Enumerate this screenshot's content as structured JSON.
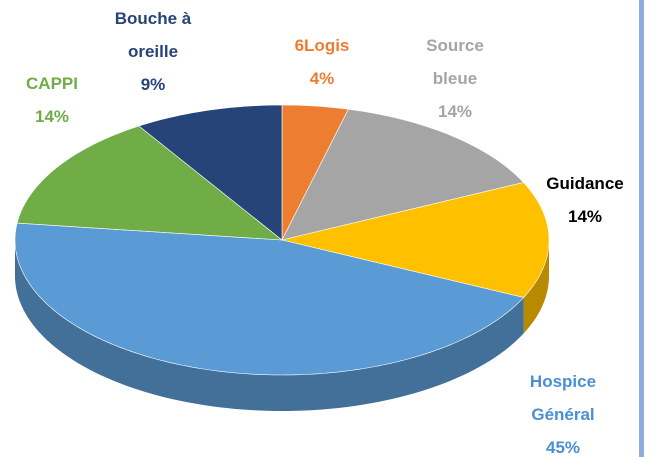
{
  "chart_data": {
    "type": "pie3d",
    "categories": [
      "6Logis",
      "Source bleue",
      "Guidance",
      "Hospice Général",
      "CAPPI",
      "Bouche à oreille"
    ],
    "values": [
      4,
      14,
      14,
      45,
      14,
      9
    ],
    "value_labels": [
      "4%",
      "14%",
      "14%",
      "45%",
      "14%",
      "9%"
    ],
    "colors": [
      "#ed7d31",
      "#a5a5a5",
      "#ffc000",
      "#5b9bd5",
      "#70ad47",
      "#264478"
    ],
    "label_colors": [
      "#ed7d31",
      "#a5a5a5",
      "#000000",
      "#4a8fd6",
      "#70ad47",
      "#264478"
    ]
  }
}
